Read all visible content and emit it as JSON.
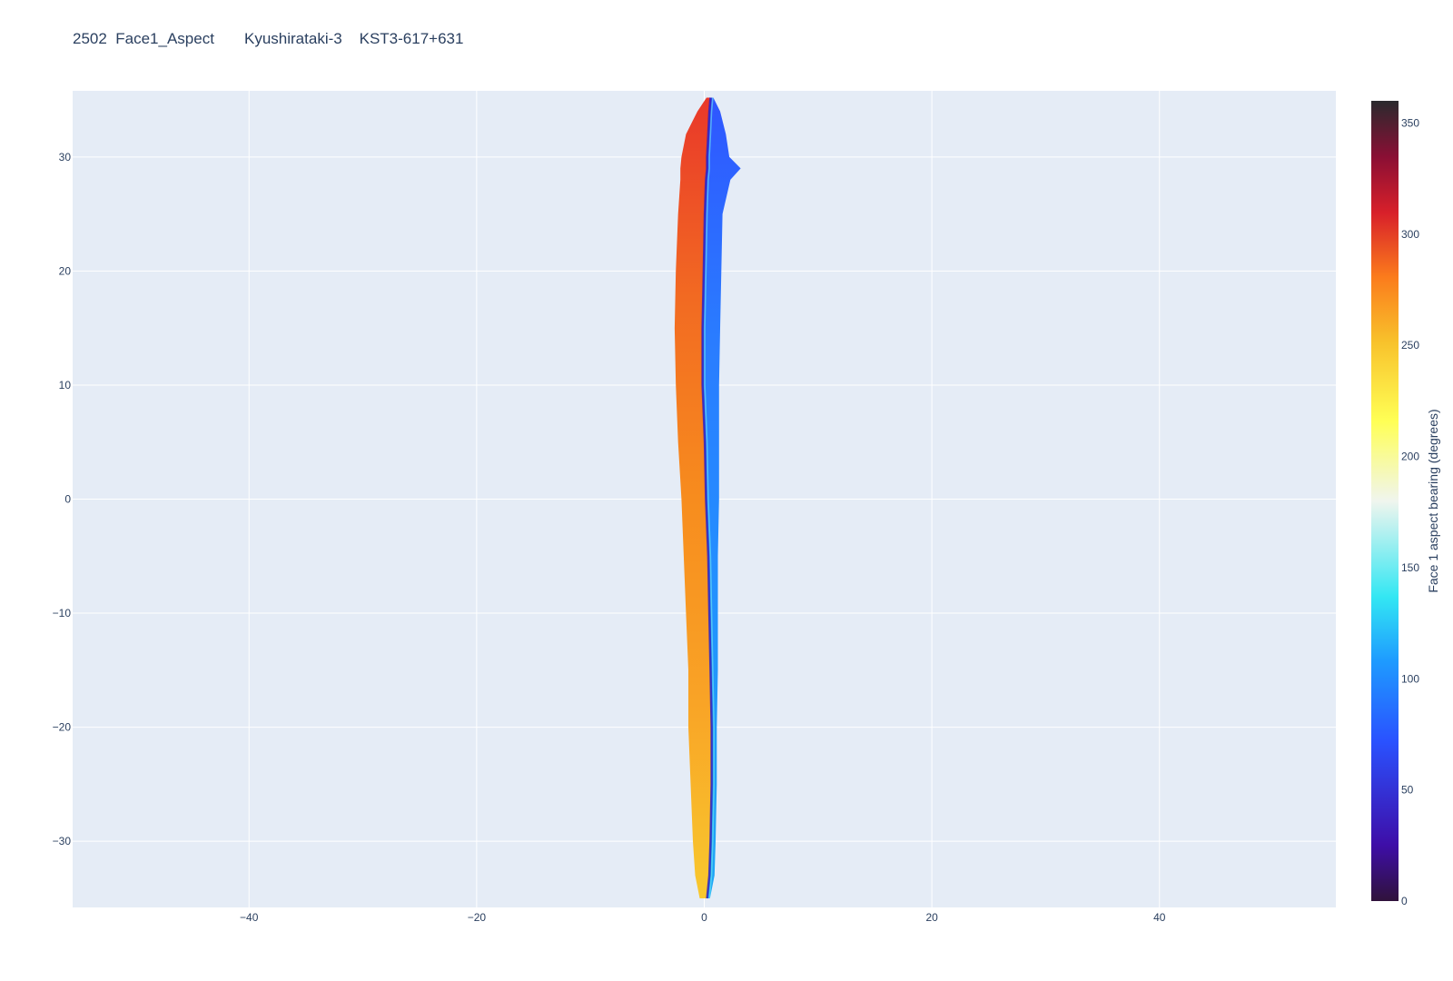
{
  "title": "2502  Face1_Aspect       Kyushirataki-3    KST3-617+631",
  "chart_data": {
    "type": "heatmap",
    "title": "2502  Face1_Aspect       Kyushirataki-3    KST3-617+631",
    "xlim": [
      -55.5,
      55.5
    ],
    "ylim": [
      -35.8,
      35.8
    ],
    "x_ticks": [
      -40,
      -20,
      0,
      20,
      40
    ],
    "x_tick_labels": [
      "−40",
      "−20",
      "0",
      "20",
      "40"
    ],
    "y_ticks": [
      30,
      20,
      10,
      0,
      -10,
      -20,
      -30
    ],
    "y_tick_labels": [
      "30",
      "20",
      "10",
      "0",
      "−10",
      "−20",
      "−30"
    ],
    "grid": true,
    "plot_bgcolor": "#e5ecf6",
    "colorbar": {
      "title": "Face 1 aspect bearing (degrees)",
      "range": [
        0,
        360
      ],
      "ticks": [
        0,
        50,
        100,
        150,
        200,
        250,
        300,
        350
      ],
      "tick_labels": [
        "0",
        "50",
        "100",
        "150",
        "200",
        "250",
        "300",
        "350"
      ],
      "colorscale": [
        [
          0,
          "#30123b"
        ],
        [
          0.07,
          "#3e0ea8"
        ],
        [
          0.2,
          "#2a52ff"
        ],
        [
          0.3,
          "#1e9bff"
        ],
        [
          0.38,
          "#33e7f3"
        ],
        [
          0.5,
          "#f0f5ee"
        ],
        [
          0.6,
          "#ffff55"
        ],
        [
          0.7,
          "#f8c12b"
        ],
        [
          0.78,
          "#fb7b1c"
        ],
        [
          0.86,
          "#d8202a"
        ],
        [
          0.93,
          "#8a0f34"
        ],
        [
          1.0,
          "#2a2a2e"
        ]
      ]
    },
    "shape_profile": [
      {
        "y": 35.2,
        "left": 0.2,
        "mid": 0.5,
        "right": 0.8
      },
      {
        "y": 34.0,
        "left": -0.6,
        "mid": 0.4,
        "right": 1.4
      },
      {
        "y": 32.0,
        "left": -1.6,
        "mid": 0.3,
        "right": 1.9
      },
      {
        "y": 30.0,
        "left": -2.0,
        "mid": 0.2,
        "right": 2.2
      },
      {
        "y": 29.0,
        "left": -2.1,
        "mid": 0.2,
        "right": 3.2
      },
      {
        "y": 28.0,
        "left": -2.1,
        "mid": 0.1,
        "right": 2.3
      },
      {
        "y": 25.0,
        "left": -2.3,
        "mid": 0.0,
        "right": 1.6
      },
      {
        "y": 20.0,
        "left": -2.5,
        "mid": -0.1,
        "right": 1.5
      },
      {
        "y": 15.0,
        "left": -2.6,
        "mid": -0.2,
        "right": 1.4
      },
      {
        "y": 10.0,
        "left": -2.5,
        "mid": -0.2,
        "right": 1.3
      },
      {
        "y": 5.0,
        "left": -2.3,
        "mid": 0.0,
        "right": 1.3
      },
      {
        "y": 0.0,
        "left": -2.0,
        "mid": 0.1,
        "right": 1.3
      },
      {
        "y": -5.0,
        "left": -1.8,
        "mid": 0.3,
        "right": 1.2
      },
      {
        "y": -10.0,
        "left": -1.6,
        "mid": 0.4,
        "right": 1.2
      },
      {
        "y": -15.0,
        "left": -1.4,
        "mid": 0.5,
        "right": 1.2
      },
      {
        "y": -20.0,
        "left": -1.4,
        "mid": 0.6,
        "right": 1.1
      },
      {
        "y": -25.0,
        "left": -1.2,
        "mid": 0.6,
        "right": 1.1
      },
      {
        "y": -30.0,
        "left": -1.0,
        "mid": 0.5,
        "right": 1.0
      },
      {
        "y": -33.0,
        "left": -0.8,
        "mid": 0.4,
        "right": 0.9
      },
      {
        "y": -35.0,
        "left": -0.4,
        "mid": 0.2,
        "right": 0.5
      }
    ],
    "left_face_value": 270,
    "right_face_value": 95,
    "ridge_value": 30
  }
}
